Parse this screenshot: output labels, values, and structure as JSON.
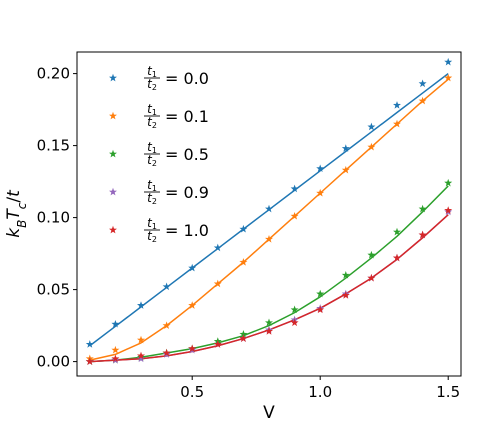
{
  "chart_data": {
    "type": "line",
    "xlabel": "V",
    "ylabel": "k_B T_c / t",
    "xlim": [
      0.05,
      1.55
    ],
    "ylim": [
      -0.01,
      0.215
    ],
    "xticks": [
      0.5,
      1.0,
      1.5
    ],
    "xtick_labels": [
      "0.5",
      "1.0",
      "1.5"
    ],
    "yticks": [
      0.0,
      0.05,
      0.1,
      0.15,
      0.2
    ],
    "ytick_labels": [
      "0.00",
      "0.05",
      "0.10",
      "0.15",
      "0.20"
    ],
    "legend_position": "top-left",
    "grid": false,
    "marker_x": [
      0.1,
      0.2,
      0.3,
      0.4,
      0.5,
      0.6,
      0.7,
      0.8,
      0.9,
      1.0,
      1.1,
      1.2,
      1.3,
      1.4,
      1.5
    ],
    "series": [
      {
        "name": "t1/t2 = 0.0",
        "ratio": "0.0",
        "color": "#1f77b4",
        "line_y": [
          0.011,
          0.0245,
          0.038,
          0.0515,
          0.065,
          0.0785,
          0.092,
          0.1055,
          0.119,
          0.1325,
          0.146,
          0.1595,
          0.173,
          0.1865,
          0.2
        ],
        "marker_y": [
          0.012,
          0.026,
          0.039,
          0.052,
          0.065,
          0.079,
          0.092,
          0.106,
          0.12,
          0.134,
          0.148,
          0.163,
          0.178,
          0.193,
          0.208
        ]
      },
      {
        "name": "t1/t2 = 0.1",
        "ratio": "0.1",
        "color": "#ff7f0e",
        "line_y": [
          0.001,
          0.005,
          0.013,
          0.025,
          0.039,
          0.054,
          0.069,
          0.085,
          0.101,
          0.117,
          0.133,
          0.149,
          0.165,
          0.181,
          0.196
        ],
        "marker_y": [
          0.002,
          0.008,
          0.015,
          0.025,
          0.039,
          0.054,
          0.069,
          0.085,
          0.101,
          0.117,
          0.133,
          0.149,
          0.165,
          0.181,
          0.197
        ]
      },
      {
        "name": "t1/t2 = 0.5",
        "ratio": "0.5",
        "color": "#2ca02c",
        "line_y": [
          0.0,
          0.001,
          0.003,
          0.006,
          0.009,
          0.013,
          0.018,
          0.025,
          0.034,
          0.045,
          0.058,
          0.072,
          0.087,
          0.104,
          0.122
        ],
        "marker_y": [
          0.0,
          0.001,
          0.003,
          0.006,
          0.009,
          0.014,
          0.019,
          0.027,
          0.036,
          0.047,
          0.06,
          0.074,
          0.09,
          0.106,
          0.124
        ]
      },
      {
        "name": "t1/t2 = 0.9",
        "ratio": "0.9",
        "color": "#9467bd",
        "line_y": [
          0.0,
          0.001,
          0.002,
          0.004,
          0.007,
          0.011,
          0.016,
          0.022,
          0.029,
          0.037,
          0.047,
          0.058,
          0.071,
          0.086,
          0.102
        ],
        "marker_y": [
          0.0,
          0.001,
          0.002,
          0.005,
          0.008,
          0.012,
          0.016,
          0.022,
          0.029,
          0.037,
          0.047,
          0.058,
          0.072,
          0.088,
          0.104
        ]
      },
      {
        "name": "t1/t2 = 1.0",
        "ratio": "1.0",
        "color": "#d62728",
        "line_y": [
          0.0,
          0.001,
          0.002,
          0.004,
          0.007,
          0.011,
          0.016,
          0.022,
          0.029,
          0.037,
          0.047,
          0.058,
          0.071,
          0.086,
          0.102
        ],
        "marker_y": [
          0.0,
          0.002,
          0.004,
          0.006,
          0.009,
          0.012,
          0.016,
          0.021,
          0.027,
          0.036,
          0.046,
          0.058,
          0.072,
          0.088,
          0.105
        ]
      }
    ]
  }
}
